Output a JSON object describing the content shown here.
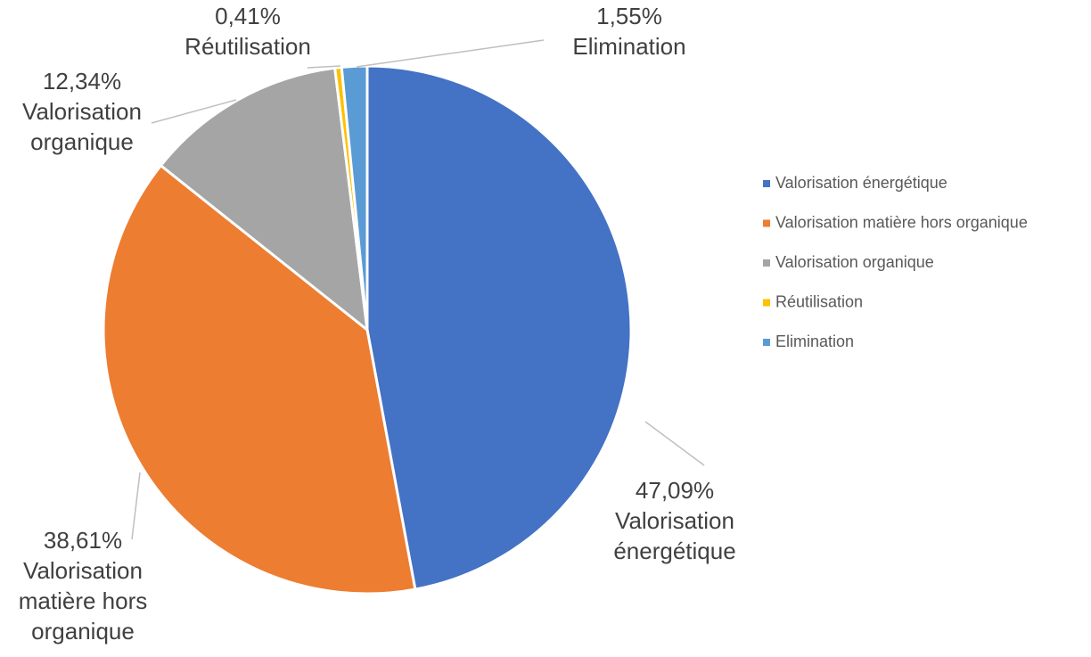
{
  "chart_data": {
    "type": "pie",
    "categories": [
      "Valorisation énergétique",
      "Valorisation matière hors organique",
      "Valorisation organique",
      "Réutilisation",
      "Elimination"
    ],
    "values": [
      47.09,
      38.61,
      12.34,
      0.41,
      1.55
    ],
    "value_labels": [
      "47,09%",
      "38,61%",
      "12,34%",
      "0,41%",
      "1,55%"
    ],
    "colors": [
      "#4472c4",
      "#ed7d31",
      "#a5a5a5",
      "#ffc000",
      "#5b9bd5"
    ],
    "legend": "right"
  }
}
